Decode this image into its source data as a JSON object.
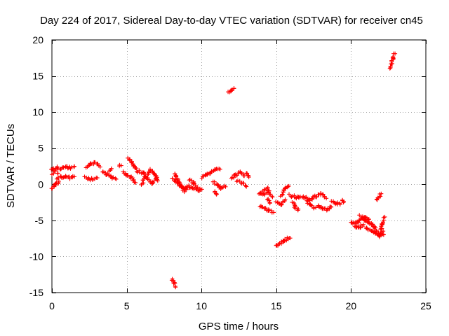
{
  "chart_data": {
    "type": "scatter",
    "title": "Day 224 of 2017, Sidereal Day-to-day VTEC variation (SDTVAR) for receiver cn45",
    "xlabel": "GPS time / hours",
    "ylabel": "SDTVAR / TECUs",
    "xlim": [
      0,
      25
    ],
    "ylim": [
      -15,
      20
    ],
    "xticks": [
      0,
      5,
      10,
      15,
      20,
      25
    ],
    "yticks": [
      -15,
      -10,
      -5,
      0,
      5,
      10,
      15,
      20
    ],
    "grid": true,
    "marker": "+",
    "color": "#ff0000",
    "tracks": [
      {
        "x": [
          0.0,
          0.3,
          0.6,
          0.9,
          1.2,
          1.5
        ],
        "y": [
          2.0,
          2.3,
          2.2,
          2.4,
          2.3,
          2.4
        ]
      },
      {
        "x": [
          0.0,
          0.2,
          0.4
        ],
        "y": [
          1.5,
          1.8,
          1.6
        ]
      },
      {
        "x": [
          0.0,
          0.15,
          0.3,
          0.5
        ],
        "y": [
          -0.6,
          -0.3,
          0.0,
          0.4
        ]
      },
      {
        "x": [
          0.3,
          0.6,
          0.9,
          1.2,
          1.5
        ],
        "y": [
          0.8,
          1.0,
          1.1,
          0.9,
          1.0
        ]
      },
      {
        "x": [
          2.3,
          2.6,
          2.9,
          3.2
        ],
        "y": [
          2.4,
          2.9,
          2.9,
          2.5
        ]
      },
      {
        "x": [
          2.2,
          2.6,
          3.0
        ],
        "y": [
          0.9,
          0.7,
          0.9
        ]
      },
      {
        "x": [
          3.4,
          3.7,
          4.0,
          4.3
        ],
        "y": [
          1.8,
          1.3,
          1.0,
          0.7
        ]
      },
      {
        "x": [
          3.8,
          4.0
        ],
        "y": [
          1.9,
          2.2
        ]
      },
      {
        "x": [
          4.5,
          4.6
        ],
        "y": [
          2.7,
          2.5
        ]
      },
      {
        "x": [
          4.8,
          5.0,
          5.3,
          5.6
        ],
        "y": [
          1.8,
          1.3,
          0.9,
          0.3
        ]
      },
      {
        "x": [
          5.1,
          5.3,
          5.5,
          5.7
        ],
        "y": [
          3.6,
          3.2,
          2.5,
          1.8
        ]
      },
      {
        "x": [
          5.8,
          6.1,
          6.4,
          6.7,
          7.0
        ],
        "y": [
          1.8,
          1.5,
          0.8,
          0.1,
          0.9
        ]
      },
      {
        "x": [
          6.0,
          6.3,
          6.6,
          6.9,
          7.1
        ],
        "y": [
          0.0,
          1.2,
          2.0,
          1.5,
          0.5
        ]
      },
      {
        "x": [
          8.0,
          8.3,
          8.6,
          9.0,
          9.4,
          9.8,
          10.0
        ],
        "y": [
          0.8,
          0.5,
          -0.3,
          -0.6,
          -0.4,
          -0.8,
          -0.7
        ]
      },
      {
        "x": [
          8.2,
          8.5,
          8.8,
          9.1
        ],
        "y": [
          1.5,
          0.2,
          -0.9,
          -0.2
        ]
      },
      {
        "x": [
          9.2,
          9.5,
          9.7
        ],
        "y": [
          0.6,
          0.1,
          -0.4
        ]
      },
      {
        "x": [
          8.0,
          8.15,
          8.3
        ],
        "y": [
          -13.2,
          -13.6,
          -14.1
        ]
      },
      {
        "x": [
          10.0,
          10.3,
          10.6,
          10.9,
          11.2
        ],
        "y": [
          0.9,
          1.2,
          1.6,
          2.0,
          2.2
        ]
      },
      {
        "x": [
          10.8,
          11.1,
          11.3,
          11.6
        ],
        "y": [
          0.3,
          -0.1,
          -0.5,
          -0.2
        ]
      },
      {
        "x": [
          10.9,
          11.0
        ],
        "y": [
          -1.0,
          -1.5
        ]
      },
      {
        "x": [
          11.8,
          12.0,
          12.2
        ],
        "y": [
          12.7,
          13.0,
          13.3
        ]
      },
      {
        "x": [
          12.0,
          12.3,
          12.6,
          12.9
        ],
        "y": [
          0.9,
          1.3,
          1.6,
          1.2
        ]
      },
      {
        "x": [
          12.4,
          12.7,
          13.0
        ],
        "y": [
          0.5,
          0.2,
          -0.2
        ]
      },
      {
        "x": [
          13.0,
          13.2
        ],
        "y": [
          1.5,
          1.1
        ]
      },
      {
        "x": [
          13.8,
          14.1,
          14.4
        ],
        "y": [
          -1.2,
          -1.4,
          -1.1
        ]
      },
      {
        "x": [
          14.1,
          14.4,
          14.7
        ],
        "y": [
          -0.8,
          -0.6,
          -1.7
        ]
      },
      {
        "x": [
          13.9,
          14.2,
          14.5,
          14.8
        ],
        "y": [
          -3.0,
          -3.3,
          -3.6,
          -3.9
        ]
      },
      {
        "x": [
          14.4,
          14.6
        ],
        "y": [
          -2.0,
          -2.6
        ]
      },
      {
        "x": [
          15.0,
          15.3,
          15.6
        ],
        "y": [
          -2.3,
          -2.8,
          -2.1
        ]
      },
      {
        "x": [
          15.3,
          15.6,
          15.8
        ],
        "y": [
          -1.5,
          -0.6,
          -0.2
        ]
      },
      {
        "x": [
          15.0,
          15.3,
          15.6,
          15.9
        ],
        "y": [
          -8.6,
          -8.1,
          -7.7,
          -7.3
        ]
      },
      {
        "x": [
          15.9,
          16.2,
          16.5,
          16.8,
          17.2
        ],
        "y": [
          -1.5,
          -1.7,
          -1.9,
          -1.8,
          -2.0
        ]
      },
      {
        "x": [
          16.1,
          16.3,
          16.5
        ],
        "y": [
          -2.5,
          -3.2,
          -3.5
        ]
      },
      {
        "x": [
          17.0,
          17.3,
          17.6
        ],
        "y": [
          -2.4,
          -2.9,
          -3.3
        ]
      },
      {
        "x": [
          17.2,
          17.6,
          18.0,
          18.3
        ],
        "y": [
          -2.3,
          -1.7,
          -1.4,
          -1.8
        ]
      },
      {
        "x": [
          17.8,
          18.1,
          18.4,
          18.7
        ],
        "y": [
          -2.8,
          -3.3,
          -3.5,
          -3.1
        ]
      },
      {
        "x": [
          18.7,
          19.0,
          19.3
        ],
        "y": [
          -2.3,
          -2.6,
          -2.8
        ]
      },
      {
        "x": [
          19.4,
          19.5
        ],
        "y": [
          -2.2,
          -2.6
        ]
      },
      {
        "x": [
          20.0,
          20.3,
          20.6,
          20.9,
          21.2
        ],
        "y": [
          -5.2,
          -5.4,
          -5.0,
          -4.6,
          -4.9
        ]
      },
      {
        "x": [
          20.2,
          20.5,
          20.8
        ],
        "y": [
          -5.8,
          -6.0,
          -5.6
        ]
      },
      {
        "x": [
          20.6,
          20.9,
          21.2,
          21.5
        ],
        "y": [
          -4.3,
          -4.8,
          -5.3,
          -5.8
        ]
      },
      {
        "x": [
          21.0,
          21.3,
          21.6,
          21.9,
          22.1
        ],
        "y": [
          -6.0,
          -6.4,
          -6.8,
          -7.0,
          -6.6
        ]
      },
      {
        "x": [
          21.3,
          21.6,
          21.9,
          22.2
        ],
        "y": [
          -5.4,
          -6.0,
          -7.2,
          -6.8
        ]
      },
      {
        "x": [
          22.0,
          22.1,
          22.25
        ],
        "y": [
          -6.3,
          -5.6,
          -4.6
        ]
      },
      {
        "x": [
          21.7,
          21.9,
          22.0
        ],
        "y": [
          -2.2,
          -1.7,
          -1.3
        ]
      },
      {
        "x": [
          22.6,
          22.7,
          22.8,
          22.9
        ],
        "y": [
          16.0,
          16.8,
          17.5,
          18.1
        ]
      }
    ]
  }
}
